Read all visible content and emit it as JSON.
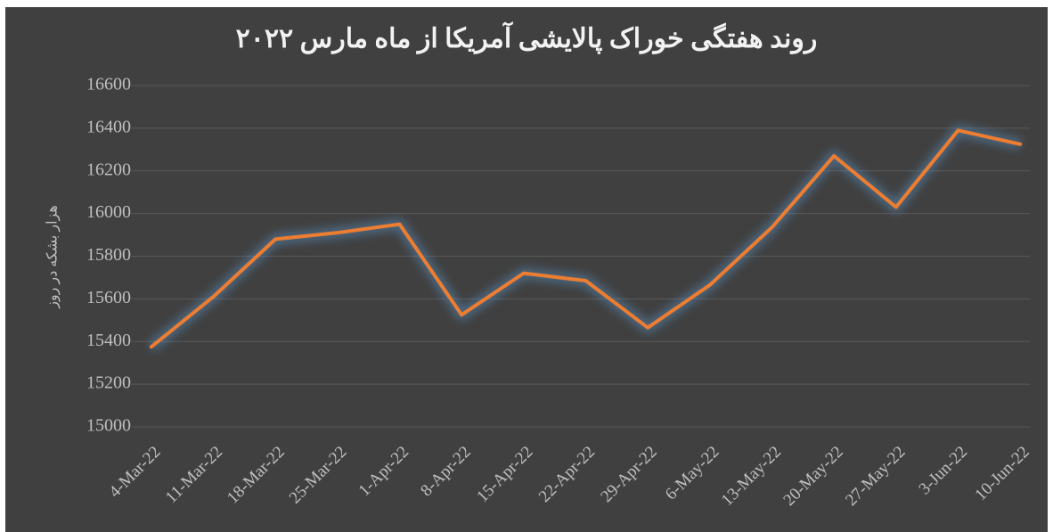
{
  "chart_data": {
    "type": "line",
    "title": "روند هفتگی خوراک پالایشی آمریکا از ماه مارس ۲۰۲۲",
    "y_label": "هزار بشکه در روز",
    "categories": [
      "4-Mar-22",
      "11-Mar-22",
      "18-Mar-22",
      "25-Mar-22",
      "1-Apr-22",
      "8-Apr-22",
      "15-Apr-22",
      "22-Apr-22",
      "29-Apr-22",
      "6-May-22",
      "13-May-22",
      "20-May-22",
      "27-May-22",
      "3-Jun-22",
      "10-Jun-22"
    ],
    "values": [
      15375,
      15610,
      15880,
      15910,
      15950,
      15525,
      15720,
      15685,
      15465,
      15665,
      15935,
      16270,
      16030,
      16390,
      16325
    ],
    "color": "#ed7d31",
    "ylim": [
      15000,
      16600
    ],
    "yticks": [
      15000,
      15200,
      15400,
      15600,
      15800,
      16000,
      16200,
      16400,
      16600
    ],
    "grid": true
  }
}
